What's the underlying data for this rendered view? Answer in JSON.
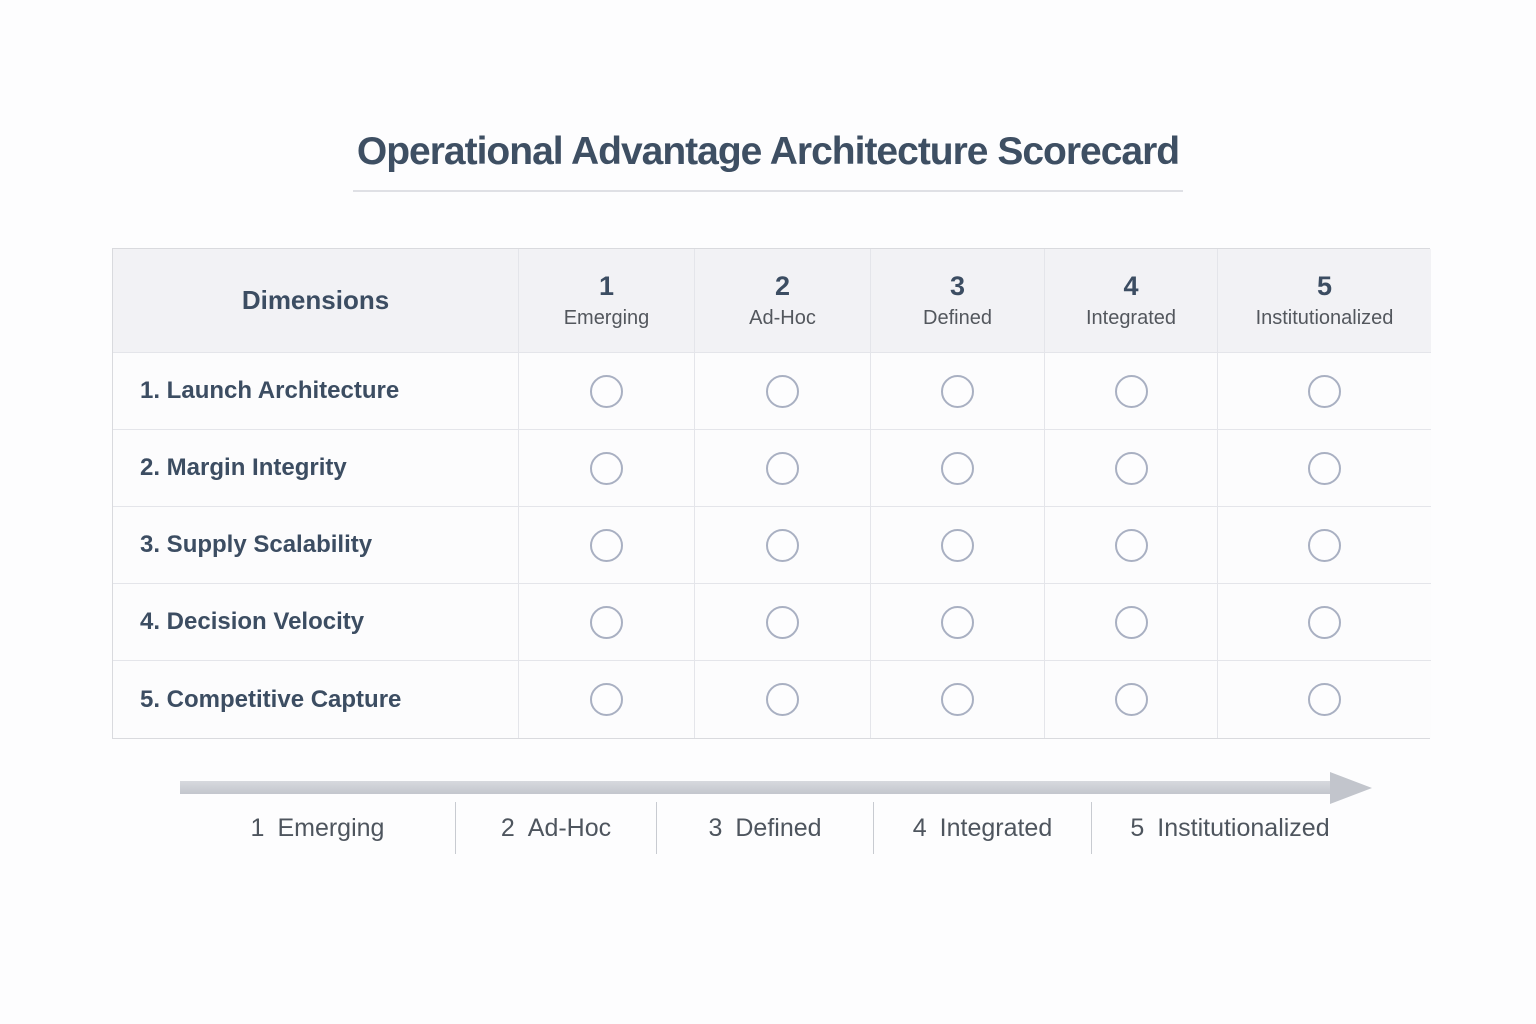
{
  "title": "Operational Advantage Architecture Scorecard",
  "scorecard": {
    "dimensions_header": "Dimensions",
    "levels": [
      {
        "number": "1",
        "label": "Emerging"
      },
      {
        "number": "2",
        "label": "Ad-Hoc"
      },
      {
        "number": "3",
        "label": "Defined"
      },
      {
        "number": "4",
        "label": "Integrated"
      },
      {
        "number": "5",
        "label": "Institutionalized"
      }
    ],
    "rows": [
      {
        "label": "1. Launch Architecture"
      },
      {
        "label": "2. Margin Integrity"
      },
      {
        "label": "3. Supply Scalability"
      },
      {
        "label": "4. Decision Velocity"
      },
      {
        "label": "5. Competitive Capture"
      }
    ]
  },
  "legend": {
    "items": [
      {
        "number": "1",
        "label": "Emerging"
      },
      {
        "number": "2",
        "label": "Ad-Hoc"
      },
      {
        "number": "3",
        "label": "Defined"
      },
      {
        "number": "4",
        "label": "Integrated"
      },
      {
        "number": "5",
        "label": "Institutionalized"
      }
    ]
  },
  "colors": {
    "title_text": "#3e4f63",
    "header_background": "#f2f2f5",
    "header_number_text": "#3c4d62",
    "header_label_text": "#53575d",
    "row_label_text": "#3c4d62",
    "row_background": "#fcfcfd",
    "table_border": "#d9dade",
    "cell_divider": "#e4e5ea",
    "radio_border": "#a9b0c2",
    "arrow_fill": "#c3c6cd",
    "legend_text": "#4e555e",
    "legend_divider": "#c8cbd1"
  }
}
